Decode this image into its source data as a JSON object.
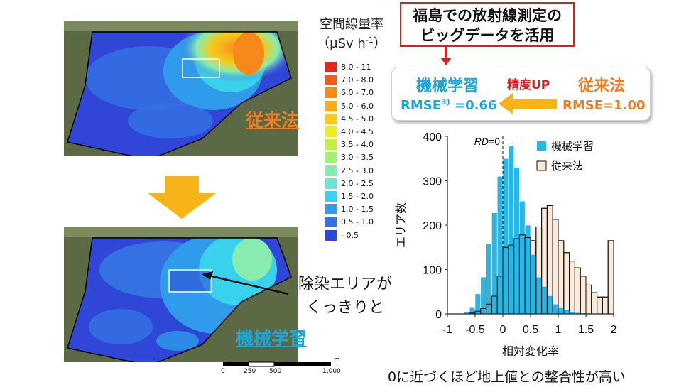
{
  "callout": {
    "line1": "福島での放射線測定の",
    "line2": "ビッグデータを活用"
  },
  "comparison": {
    "ml_label": "機械学習",
    "ml_rmse": "RMSE",
    "ml_rmse_sup": "3)",
    "ml_rmse_value": " =0.66",
    "precision_label": "精度UP",
    "old_label": "従来法",
    "old_rmse": "RMSE=1.00"
  },
  "legend": {
    "title": "空間線量率",
    "unit": "（μSv h",
    "unit_sup": "-1",
    "unit_close": "）",
    "items": [
      {
        "label": "8.0 - 11",
        "color": "#e8251a"
      },
      {
        "label": "7.0 - 8.0",
        "color": "#f25c17"
      },
      {
        "label": "6.0 - 7.0",
        "color": "#f7891a"
      },
      {
        "label": "5.0 - 6.0",
        "color": "#f7ae14"
      },
      {
        "label": "4.5 - 5.0",
        "color": "#f6cc1c"
      },
      {
        "label": "4.0 - 4.5",
        "color": "#eeec28"
      },
      {
        "label": "3.5 - 4.0",
        "color": "#c5ee45"
      },
      {
        "label": "3.0 - 3.5",
        "color": "#a4ee76"
      },
      {
        "label": "2.5 - 3.0",
        "color": "#86ecb0"
      },
      {
        "label": "2.0 - 2.5",
        "color": "#66e6d3"
      },
      {
        "label": "1.5 - 2.0",
        "color": "#39d1ec"
      },
      {
        "label": "1.0 - 1.5",
        "color": "#2f9bea"
      },
      {
        "label": "0.5 - 1.0",
        "color": "#3472e4"
      },
      {
        "label": "- 0.5",
        "color": "#2f46d6"
      }
    ]
  },
  "maps": {
    "top_label": "従来法",
    "bottom_label": "機械学習"
  },
  "annotation": {
    "line1": "除染エリアが",
    "line2": "くっきりと"
  },
  "scale": {
    "unit": "m",
    "ticks": [
      "0",
      "250",
      "500",
      "1,000"
    ]
  },
  "caption": "0に近づくほど地上値との整合性が高い",
  "chart_data": {
    "type": "bar",
    "xlabel": "相対変化率",
    "ylabel": "エリア数",
    "xlim": [
      -1,
      2
    ],
    "ylim": [
      0,
      400
    ],
    "xticks": [
      "-1",
      "-0.5",
      "0",
      "0.5",
      "1",
      "1.5",
      "2"
    ],
    "yticks": [
      "0",
      "100",
      "200",
      "300",
      "400"
    ],
    "bin_width": 0.1,
    "bin_starts": [
      -0.7,
      -0.6,
      -0.5,
      -0.4,
      -0.3,
      -0.2,
      -0.1,
      0.0,
      0.1,
      0.2,
      0.3,
      0.4,
      0.5,
      0.6,
      0.7,
      0.8,
      0.9,
      1.0,
      1.1,
      1.2,
      1.3,
      1.4,
      1.5,
      1.6,
      1.7,
      1.8,
      1.9
    ],
    "reference_line": {
      "x": 0,
      "label_italic": "RD",
      "label_rest": "=0"
    },
    "legend_position": "top-right",
    "series": [
      {
        "name": "機械学習",
        "color": "#29b6e4",
        "values": [
          5,
          14,
          45,
          83,
          158,
          228,
          310,
          350,
          378,
          330,
          254,
          200,
          134,
          83,
          62,
          41,
          22,
          14,
          9,
          5,
          3,
          2,
          1,
          0,
          0,
          0,
          0
        ]
      },
      {
        "name": "従来法",
        "color": "#fbe9da",
        "values": [
          0,
          2,
          6,
          12,
          22,
          40,
          85,
          150,
          155,
          170,
          178,
          172,
          165,
          196,
          238,
          244,
          213,
          165,
          138,
          119,
          104,
          85,
          65,
          48,
          38,
          38,
          165
        ]
      }
    ]
  }
}
